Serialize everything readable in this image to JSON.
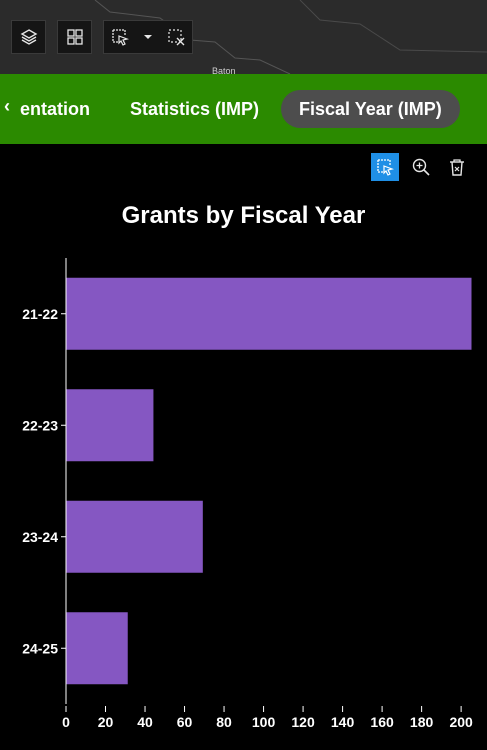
{
  "map": {
    "place_label": "Baton"
  },
  "toolbar": {
    "layers_icon": "layers-icon",
    "grid_icon": "grid-icon",
    "select_icon": "select-cursor-icon",
    "dropdown_icon": "chevron-down-icon",
    "clear_selection_icon": "clear-selection-icon"
  },
  "tabs": {
    "prev_arrow": "‹",
    "items": [
      {
        "label": "entation",
        "active": false
      },
      {
        "label": "Statistics (IMP)",
        "active": false
      },
      {
        "label": "Fiscal Year (IMP)",
        "active": true
      }
    ]
  },
  "colors": {
    "tab_bar": "#2b8a00",
    "bar": "#8557c2",
    "selected_tool": "#1f8fe6",
    "background": "#000000"
  },
  "chart_tools": [
    "selection-icon",
    "zoom-in-icon",
    "delete-icon"
  ],
  "chart_data": {
    "type": "bar",
    "orientation": "horizontal",
    "title": "Grants by Fiscal Year",
    "categories": [
      "21-22",
      "22-23",
      "23-24",
      "24-25"
    ],
    "values": [
      205,
      44,
      69,
      31
    ],
    "xlim": [
      0,
      205
    ],
    "xticks": [
      0,
      20,
      40,
      60,
      80,
      100,
      120,
      140,
      160,
      180,
      200
    ],
    "xlabel": "",
    "ylabel": "",
    "grid": false
  }
}
